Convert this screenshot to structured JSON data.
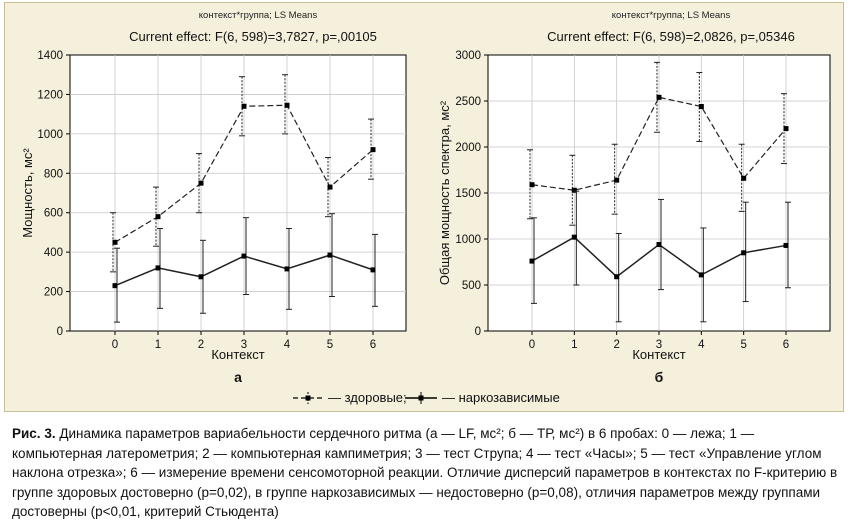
{
  "legend": {
    "healthy_label": "— здоровые;",
    "addicted_label": "— наркозависимые"
  },
  "caption": {
    "label": "Рис. 3.",
    "text": "Динамика параметров вариабельности сердечного ритма (а — LF, мс²; б — ТР, мс²) в 6 пробах: 0 — лежа; 1 — компьютерная латерометрия; 2 — компьютерная кампиметрия; 3 — тест Струпа; 4 — тест «Часы»; 5 — тест «Управление углом наклона отрезка»; 6 — измерение времени сенсомоторной реакции. Отличие дисперсий параметров в контекстах по F-критерию в группе здоровых достоверно (p=0,02), в группе наркозависимых — недостоверно (p=0,08), отличия параметров между группами достоверны (p<0,01, критерий Стьюдента)"
  },
  "chart_data": [
    {
      "type": "line",
      "title": "контекст*группа; LS Means",
      "subtitle": "Current effect: F(6, 598)=3,7827, p=,00105",
      "xlabel": "Контекст",
      "ylabel": "Мощность, мс²",
      "panel_label": "а",
      "x": [
        0,
        1,
        2,
        3,
        4,
        5,
        6
      ],
      "ylim": [
        0,
        1400
      ],
      "yticks": [
        0,
        200,
        400,
        600,
        800,
        1000,
        1200,
        1400
      ],
      "grid": true,
      "series": [
        {
          "style": "dashed",
          "values": [
            450,
            580,
            750,
            1140,
            1145,
            730,
            920
          ],
          "lower": [
            300,
            430,
            600,
            990,
            1000,
            580,
            770
          ],
          "upper": [
            600,
            730,
            900,
            1290,
            1300,
            880,
            1075
          ]
        },
        {
          "style": "solid",
          "values": [
            230,
            320,
            275,
            380,
            315,
            385,
            310
          ],
          "lower": [
            45,
            115,
            90,
            185,
            110,
            175,
            125
          ],
          "upper": [
            420,
            520,
            460,
            575,
            520,
            595,
            490
          ]
        }
      ]
    },
    {
      "type": "line",
      "title": "контекст*группа; LS Means",
      "subtitle": "Current effect: F(6, 598)=2,0826, p=,05346",
      "xlabel": "Контекст",
      "ylabel": "Общая мощность спектра, мс²",
      "panel_label": "б",
      "x": [
        0,
        1,
        2,
        3,
        4,
        5,
        6
      ],
      "ylim": [
        0,
        3000
      ],
      "yticks": [
        0,
        500,
        1000,
        1500,
        2000,
        2500,
        3000
      ],
      "grid": true,
      "series": [
        {
          "style": "dashed",
          "values": [
            1590,
            1530,
            1640,
            2540,
            2440,
            1660,
            2200
          ],
          "lower": [
            1220,
            1150,
            1270,
            2160,
            2060,
            1300,
            1820
          ],
          "upper": [
            1970,
            1910,
            2030,
            2920,
            2810,
            2030,
            2580
          ]
        },
        {
          "style": "solid",
          "values": [
            760,
            1020,
            590,
            940,
            610,
            850,
            930
          ],
          "lower": [
            300,
            500,
            100,
            450,
            100,
            320,
            470
          ],
          "upper": [
            1230,
            1520,
            1060,
            1430,
            1120,
            1400,
            1400
          ]
        }
      ]
    }
  ]
}
